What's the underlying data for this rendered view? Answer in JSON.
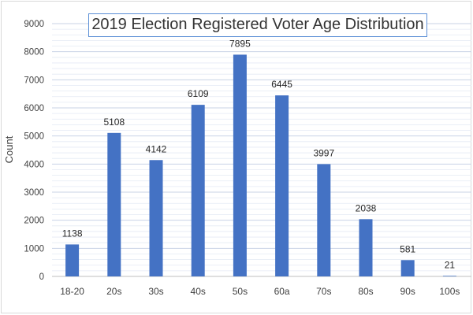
{
  "chart_data": {
    "type": "bar",
    "title": "2019 Election Registered Voter Age Distribution",
    "xlabel": "",
    "ylabel": "Count",
    "categories": [
      "18-20",
      "20s",
      "30s",
      "40s",
      "50s",
      "60a",
      "70s",
      "80s",
      "90s",
      "100s"
    ],
    "values": [
      1138,
      5108,
      4142,
      6109,
      7895,
      6445,
      3997,
      2038,
      581,
      21
    ],
    "ylim": [
      0,
      9000
    ],
    "yticks": [
      0,
      1000,
      2000,
      3000,
      4000,
      5000,
      6000,
      7000,
      8000,
      9000
    ],
    "data_labels": true,
    "grid": true,
    "legend": "none",
    "colors": {
      "bar": "#4472c4",
      "grid": "#d0d8e8",
      "title_border": "#5b8fd6"
    }
  }
}
